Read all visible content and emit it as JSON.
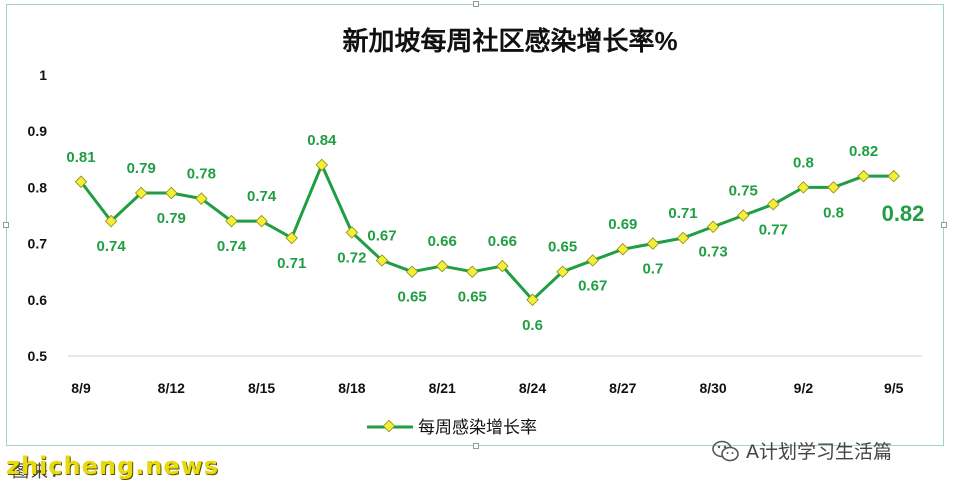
{
  "chart_data": {
    "type": "line",
    "title": "新加坡每周社区感染增长率%",
    "y_ticks": [
      "1",
      "0.9",
      "0.8",
      "0.7",
      "0.6",
      "0.5"
    ],
    "ylim": [
      0.5,
      1
    ],
    "x_tick_labels": [
      "8/9",
      "8/12",
      "8/15",
      "8/18",
      "8/21",
      "8/24",
      "8/27",
      "8/30",
      "9/2",
      "9/5"
    ],
    "series": [
      {
        "name": "每周感染增长率",
        "color": "#1f9e43",
        "marker_color": "#f2ee3a",
        "x": [
          "8/9",
          "8/10",
          "8/11",
          "8/12",
          "8/13",
          "8/14",
          "8/15",
          "8/16",
          "8/17",
          "8/18",
          "8/19",
          "8/20",
          "8/21",
          "8/22",
          "8/23",
          "8/24",
          "8/25",
          "8/26",
          "8/27",
          "8/28",
          "8/29",
          "8/30",
          "8/31",
          "9/1",
          "9/2",
          "9/3",
          "9/4",
          "9/5"
        ],
        "values": [
          0.81,
          0.74,
          0.79,
          0.79,
          0.78,
          0.74,
          0.74,
          0.71,
          0.84,
          0.72,
          0.67,
          0.65,
          0.66,
          0.65,
          0.66,
          0.6,
          0.65,
          0.67,
          0.69,
          0.7,
          0.71,
          0.73,
          0.75,
          0.77,
          0.8,
          0.8,
          0.82,
          0.82
        ],
        "labels": [
          "0.81",
          "0.74",
          "0.79",
          "0.79",
          "0.78",
          "0.74",
          "0.74",
          "0.71",
          "0.84",
          "0.72",
          "0.67",
          "0.65",
          "0.66",
          "0.65",
          "0.66",
          "0.6",
          "0.65",
          "0.67",
          "0.69",
          "0.7",
          "0.71",
          "0.73",
          "0.75",
          "0.77",
          "0.8",
          "0.8",
          "0.82",
          "0.82"
        ]
      }
    ],
    "legend": "bottom",
    "grid": false
  },
  "watermarks": {
    "source": "图来：",
    "news": "zhicheng.news",
    "wechat": "A计划学习生活篇"
  },
  "icons": [
    "wechat-icon"
  ]
}
